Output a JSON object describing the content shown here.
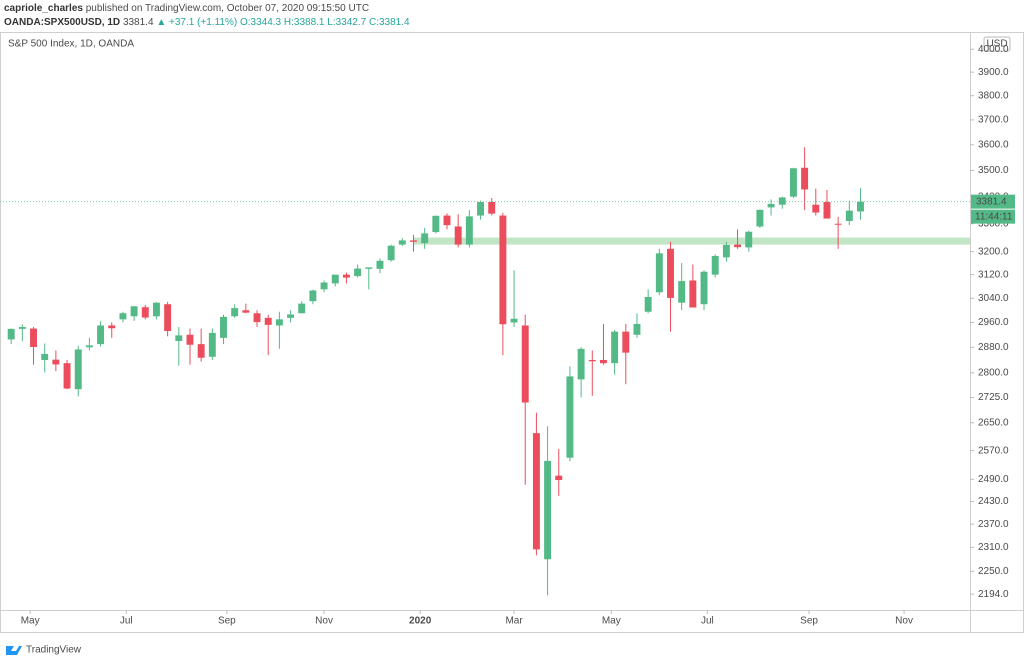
{
  "header": {
    "author": "capriole_charles",
    "published": "published on TradingView.com, October 07, 2020 09:15:50 UTC",
    "symbol": "OANDA:SPX500USD, 1D",
    "price": "3381.4",
    "change": "▲ +37.1 (+1.11%)",
    "open": "O:3344.3",
    "high": "H:3388.1",
    "low": "L:3342.7",
    "close": "C:3381.4"
  },
  "chart_data": {
    "type": "candlestick",
    "title": "S&P 500 Index, 1D, OANDA",
    "currency": "USD",
    "log_scale": true,
    "grid": false,
    "up_color": "#53b987",
    "down_color": "#eb4d5c",
    "last_price": 3381.4,
    "last_price_label": "3381.4",
    "countdown": "11:44:11",
    "support_zone": {
      "low": 3225,
      "high": 3250,
      "x_start": 37,
      "color": "#b7e1bb"
    },
    "xlim": [
      0,
      86.8
    ],
    "xticks": [
      {
        "value": 2.7,
        "label": "May"
      },
      {
        "value": 11.3,
        "label": "Jul"
      },
      {
        "value": 20.3,
        "label": "Sep"
      },
      {
        "value": 29.0,
        "label": "Nov"
      },
      {
        "value": 37.6,
        "label": "2020"
      },
      {
        "value": 46.0,
        "label": "Mar"
      },
      {
        "value": 54.7,
        "label": "May"
      },
      {
        "value": 63.3,
        "label": "Jul"
      },
      {
        "value": 72.4,
        "label": "Sep"
      },
      {
        "value": 80.9,
        "label": "Nov"
      }
    ],
    "ylim": [
      2156,
      4072
    ],
    "yticks": [
      {
        "value": 2194,
        "label": "2194.0"
      },
      {
        "value": 2250,
        "label": "2250.0"
      },
      {
        "value": 2310,
        "label": "2310.0"
      },
      {
        "value": 2370,
        "label": "2370.0"
      },
      {
        "value": 2430,
        "label": "2430.0"
      },
      {
        "value": 2490,
        "label": "2490.0"
      },
      {
        "value": 2570,
        "label": "2570.0"
      },
      {
        "value": 2650,
        "label": "2650.0"
      },
      {
        "value": 2725,
        "label": "2725.0"
      },
      {
        "value": 2800,
        "label": "2800.0"
      },
      {
        "value": 2880,
        "label": "2880.0"
      },
      {
        "value": 2960,
        "label": "2960.0"
      },
      {
        "value": 3040,
        "label": "3040.0"
      },
      {
        "value": 3120,
        "label": "3120.0"
      },
      {
        "value": 3200,
        "label": "3200.0"
      },
      {
        "value": 3300,
        "label": "3300.0"
      },
      {
        "value": 3400,
        "label": "3400.0"
      },
      {
        "value": 3500,
        "label": "3500.0"
      },
      {
        "value": 3600,
        "label": "3600.0"
      },
      {
        "value": 3700,
        "label": "3700.0"
      },
      {
        "value": 3800,
        "label": "3800.0"
      },
      {
        "value": 3900,
        "label": "3900.0"
      },
      {
        "value": 4000,
        "label": "4000.0"
      }
    ],
    "x": [
      1,
      2,
      3,
      4,
      5,
      6,
      7,
      8,
      9,
      10,
      11,
      12,
      13,
      14,
      15,
      16,
      17,
      18,
      19,
      20,
      21,
      22,
      23,
      24,
      25,
      26,
      27,
      28,
      29,
      30,
      31,
      32,
      33,
      34,
      35,
      36,
      37,
      38,
      39,
      40,
      41,
      42,
      43,
      44,
      45,
      46,
      47,
      48,
      49,
      50,
      51,
      52,
      53,
      54,
      55,
      56,
      57,
      58,
      59,
      60,
      61,
      62,
      63,
      64,
      65,
      66,
      67,
      68,
      69,
      70,
      71,
      72,
      73,
      74,
      75,
      76,
      77
    ],
    "open": [
      2905,
      2939,
      2940,
      2840,
      2841,
      2830,
      2750,
      2880,
      2890,
      2950,
      2970,
      2980,
      3010,
      2980,
      3020,
      2900,
      2920,
      2890,
      2850,
      2910,
      2980,
      3000,
      2990,
      2975,
      2950,
      2975,
      2990,
      3030,
      3070,
      3090,
      3120,
      3115,
      3140,
      3140,
      3170,
      3225,
      3240,
      3230,
      3270,
      3330,
      3290,
      3225,
      3330,
      3380,
      3330,
      2960,
      2950,
      2620,
      2280,
      2500,
      2550,
      2780,
      2840,
      2840,
      2830,
      2930,
      2920,
      2995,
      3060,
      3210,
      3025,
      3100,
      3020,
      3120,
      3180,
      3225,
      3215,
      3290,
      3360,
      3370,
      3400,
      3510,
      3370,
      3380,
      3300,
      3310,
      3345
    ],
    "high": [
      2940,
      2954,
      2945,
      2892,
      2870,
      2840,
      2885,
      2910,
      2964,
      2960,
      2995,
      3014,
      3018,
      3027,
      3028,
      2945,
      2940,
      2940,
      2940,
      2985,
      3020,
      3022,
      3000,
      2985,
      2995,
      3000,
      3030,
      3068,
      3100,
      3120,
      3127,
      3155,
      3145,
      3176,
      3225,
      3248,
      3260,
      3285,
      3330,
      3338,
      3335,
      3350,
      3385,
      3395,
      3340,
      3135,
      2985,
      2680,
      2640,
      2575,
      2820,
      2880,
      2870,
      2955,
      2935,
      2955,
      2990,
      3070,
      3210,
      3235,
      3160,
      3155,
      3135,
      3190,
      3235,
      3280,
      3275,
      3352,
      3390,
      3400,
      3510,
      3590,
      3430,
      3425,
      3325,
      3385,
      3432
    ],
    "low": [
      2890,
      2900,
      2825,
      2801,
      2805,
      2750,
      2728,
      2870,
      2882,
      2910,
      2960,
      2965,
      2970,
      2970,
      2915,
      2822,
      2825,
      2835,
      2840,
      2890,
      2975,
      2990,
      2945,
      2855,
      2875,
      2960,
      2990,
      3020,
      3060,
      3080,
      3090,
      3110,
      3070,
      3125,
      3165,
      3220,
      3200,
      3210,
      3265,
      3280,
      3215,
      3215,
      3315,
      3330,
      2855,
      2945,
      2475,
      2290,
      2191,
      2445,
      2540,
      2725,
      2730,
      2825,
      2795,
      2765,
      2910,
      2990,
      3050,
      2930,
      3000,
      3010,
      3000,
      3110,
      3165,
      3210,
      3200,
      3285,
      3330,
      3355,
      3395,
      3350,
      3330,
      3320,
      3210,
      3295,
      3315
    ],
    "close": [
      2939,
      2945,
      2881,
      2859,
      2826,
      2752,
      2873,
      2886,
      2950,
      2941,
      2990,
      3013,
      2976,
      3025,
      2932,
      2918,
      2888,
      2847,
      2926,
      2978,
      3007,
      2992,
      2961,
      2952,
      2970,
      2986,
      3022,
      3066,
      3093,
      3120,
      3110,
      3141,
      3145,
      3168,
      3221,
      3240,
      3235,
      3265,
      3329,
      3295,
      3225,
      3327,
      3380,
      3337,
      2954,
      2972,
      2710,
      2305,
      2541,
      2488,
      2789,
      2875,
      2836,
      2830,
      2930,
      2863,
      2955,
      3044,
      3194,
      3041,
      3098,
      3009,
      3130,
      3185,
      3224,
      3216,
      3271,
      3351,
      3373,
      3397,
      3508,
      3427,
      3341,
      3319,
      3298,
      3348,
      3381
    ]
  },
  "footer": {
    "brand": "TradingView"
  }
}
